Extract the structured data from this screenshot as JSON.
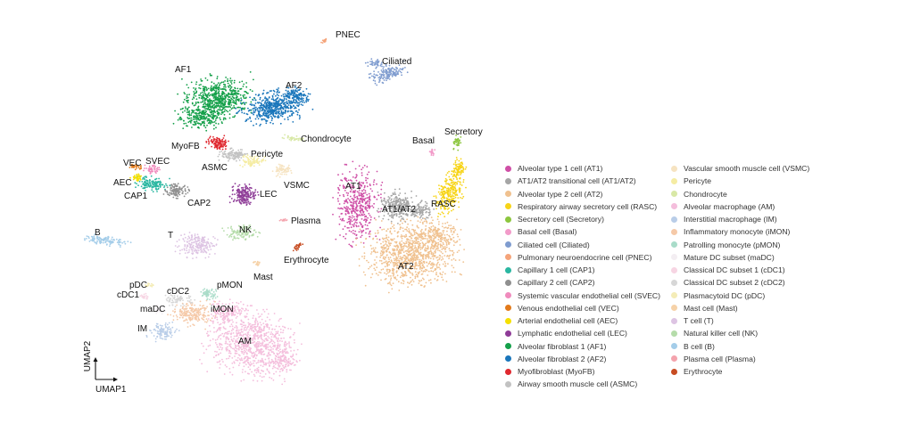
{
  "chart_data": {
    "type": "scatter",
    "title": "",
    "xlabel": "UMAP1",
    "ylabel": "UMAP2",
    "grid": false,
    "legend_placement": "right",
    "series": [
      {
        "name": "Alveolar type 1 cell (AT1)",
        "label": "AT1",
        "color": "#cf4fa6"
      },
      {
        "name": "AT1/AT2 transitional cell (AT1/AT2)",
        "label": "AT1/AT2",
        "color": "#a5a5a5"
      },
      {
        "name": "Alveolar type 2 cell (AT2)",
        "label": "AT2",
        "color": "#f0c18f"
      },
      {
        "name": "Respiratory airway secretory cell (RASC)",
        "label": "RASC",
        "color": "#f7d417"
      },
      {
        "name": "Secretory cell (Secretory)",
        "label": "Secretory",
        "color": "#8cc63f"
      },
      {
        "name": "Basal cell (Basal)",
        "label": "Basal",
        "color": "#f29bc9"
      },
      {
        "name": "Ciliated cell (Ciliated)",
        "label": "Ciliated",
        "color": "#7f9ccf"
      },
      {
        "name": "Pulmonary neuroendocrine cell (PNEC)",
        "label": "PNEC",
        "color": "#f5a47a"
      },
      {
        "name": "Capillary 1 cell (CAP1)",
        "label": "CAP1",
        "color": "#2ab7a1"
      },
      {
        "name": "Capillary 2 cell (CAP2)",
        "label": "CAP2",
        "color": "#8f8f8f"
      },
      {
        "name": "Systemic vascular endothelial cell (SVEC)",
        "label": "SVEC",
        "color": "#f08bbd"
      },
      {
        "name": "Venous endothelial cell (VEC)",
        "label": "VEC",
        "color": "#e27a1b"
      },
      {
        "name": "Arterial endothelial cell (AEC)",
        "label": "AEC",
        "color": "#f5e000"
      },
      {
        "name": "Lymphatic endothelial cell (LEC)",
        "label": "LEC",
        "color": "#8e3c97"
      },
      {
        "name": "Alveolar fibroblast 1 (AF1)",
        "label": "AF1",
        "color": "#15a04a"
      },
      {
        "name": "Alveolar fibroblast 2 (AF2)",
        "label": "AF2",
        "color": "#1a76bb"
      },
      {
        "name": "Myofibroblast (MyoFB)",
        "label": "MyoFB",
        "color": "#e0282f"
      },
      {
        "name": "Airway smooth muscle cell (ASMC)",
        "label": "ASMC",
        "color": "#c2c2c2"
      },
      {
        "name": "Vascular smooth muscle cell (VSMC)",
        "label": "VSMC",
        "color": "#f6e3c1"
      },
      {
        "name": "Pericyte",
        "label": "Pericyte",
        "color": "#f5eca3"
      },
      {
        "name": "Chondrocyte",
        "label": "Chondrocyte",
        "color": "#d8e8a6"
      },
      {
        "name": "Alveolar macrophage (AM)",
        "label": "AM",
        "color": "#f4bedc"
      },
      {
        "name": "Interstitial macrophage (IM)",
        "label": "IM",
        "color": "#b9cde8"
      },
      {
        "name": "Inflammatory monocyte (iMON)",
        "label": "iMON",
        "color": "#f5c9a8"
      },
      {
        "name": "Patrolling monocyte (pMON)",
        "label": "pMON",
        "color": "#a9dcc9"
      },
      {
        "name": "Mature DC subset (maDC)",
        "label": "maDC",
        "color": "#f3eef2"
      },
      {
        "name": "Classical DC subset 1 (cDC1)",
        "label": "cDC1",
        "color": "#f7d5e3"
      },
      {
        "name": "Classical DC subset 2 (cDC2)",
        "label": "cDC2",
        "color": "#d7d7d7"
      },
      {
        "name": "Plasmacytoid DC (pDC)",
        "label": "pDC",
        "color": "#f4ecb7"
      },
      {
        "name": "Mast cell (Mast)",
        "label": "Mast",
        "color": "#f6d2a8"
      },
      {
        "name": "T cell (T)",
        "label": "T",
        "color": "#ddc4e3"
      },
      {
        "name": "Natural killer cell (NK)",
        "label": "NK",
        "color": "#b5dcaa"
      },
      {
        "name": "B cell (B)",
        "label": "B",
        "color": "#a4cde9"
      },
      {
        "name": "Plasma cell (Plasma)",
        "label": "Plasma",
        "color": "#f4a3ad"
      },
      {
        "name": "Erythrocyte",
        "label": "Erythrocyte",
        "color": "#c74c22"
      }
    ]
  }
}
